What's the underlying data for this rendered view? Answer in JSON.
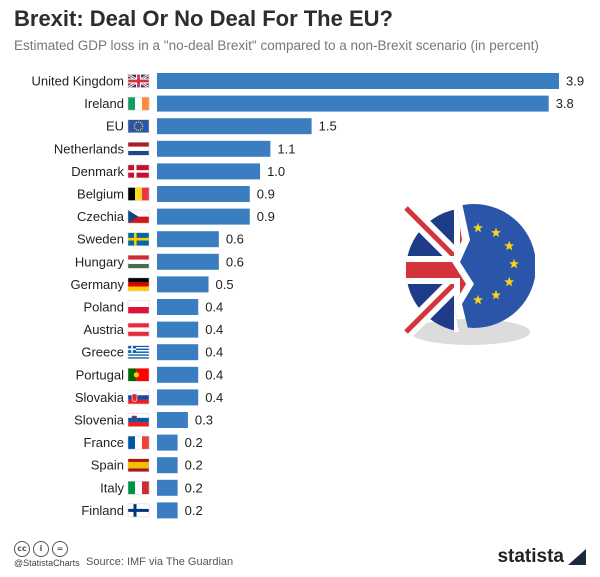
{
  "chart_data": {
    "type": "bar",
    "orientation": "horizontal",
    "title": "Brexit: Deal Or No Deal For The EU?",
    "subtitle": "Estimated GDP loss in a \"no-deal Brexit\" compared to a non-Brexit scenario (in percent)",
    "categories": [
      "United Kingdom",
      "Ireland",
      "EU",
      "Netherlands",
      "Denmark",
      "Belgium",
      "Czechia",
      "Sweden",
      "Hungary",
      "Germany",
      "Poland",
      "Austria",
      "Greece",
      "Portugal",
      "Slovakia",
      "Slovenia",
      "France",
      "Spain",
      "Italy",
      "Finland"
    ],
    "values": [
      3.9,
      3.8,
      1.5,
      1.1,
      1.0,
      0.9,
      0.9,
      0.6,
      0.6,
      0.5,
      0.4,
      0.4,
      0.4,
      0.4,
      0.4,
      0.3,
      0.2,
      0.2,
      0.2,
      0.2
    ],
    "value_labels": [
      "3.9",
      "3.8",
      "1.5",
      "1.1",
      "1.0",
      "0.9",
      "0.9",
      "0.6",
      "0.6",
      "0.5",
      "0.4",
      "0.4",
      "0.4",
      "0.4",
      "0.4",
      "0.3",
      "0.2",
      "0.2",
      "0.2",
      "0.2"
    ],
    "flags": [
      "gb",
      "ie",
      "eu",
      "nl",
      "dk",
      "be",
      "cz",
      "se",
      "hu",
      "de",
      "pl",
      "at",
      "gr",
      "pt",
      "sk",
      "si",
      "fr",
      "es",
      "it",
      "fi"
    ],
    "xlim": [
      0,
      3.9
    ],
    "xlabel": "",
    "ylabel": "",
    "grid": false,
    "bar_color": "#3a7ec1"
  },
  "footer": {
    "handle": "@StatistaCharts",
    "source": "Source: IMF via The Guardian",
    "brand": "statista"
  },
  "colors": {
    "bar": "#3a7ec1",
    "eu_blue": "#2b55a8",
    "uk_red": "#d3333b",
    "uk_blue": "#1f3c88",
    "gold": "#f6d21b"
  }
}
